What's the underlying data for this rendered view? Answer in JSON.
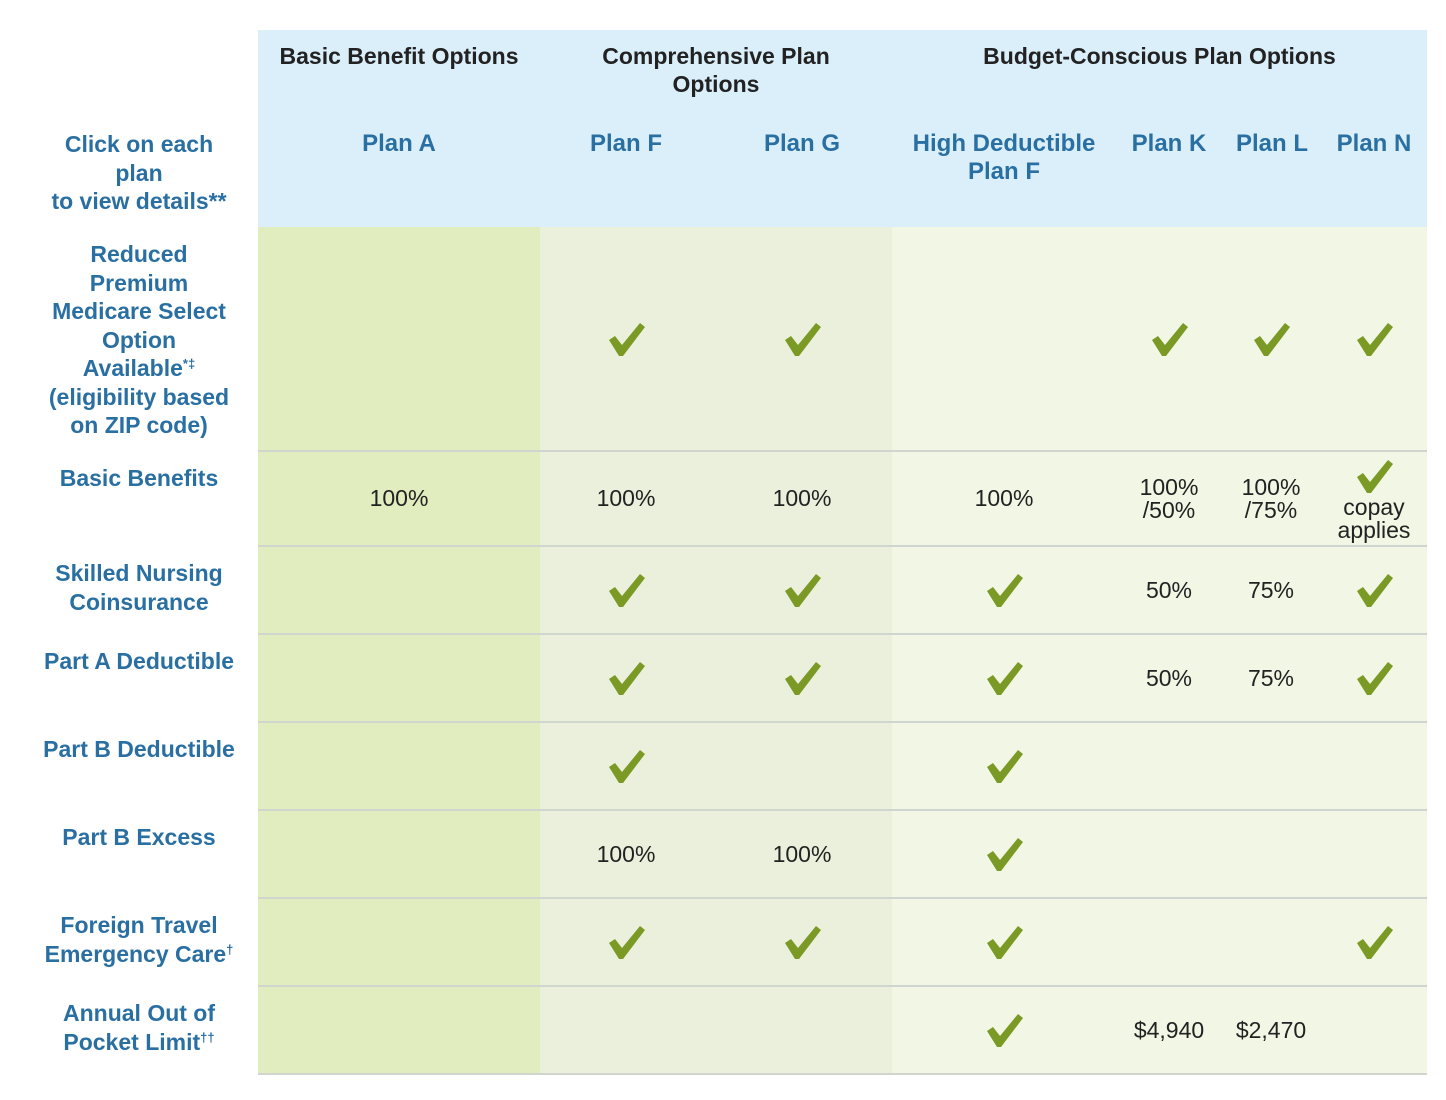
{
  "groups": [
    {
      "key": "basic",
      "label": "Basic Benefit Options"
    },
    {
      "key": "comprehensive",
      "label": "Comprehensive Plan Options"
    },
    {
      "key": "budget",
      "label": "Budget-Conscious Plan Options"
    }
  ],
  "instruction": {
    "line1": "Click on each plan",
    "line2": "to view details**"
  },
  "plans": [
    {
      "key": "A",
      "label": "Plan A"
    },
    {
      "key": "F",
      "label": "Plan F"
    },
    {
      "key": "G",
      "label": "Plan G"
    },
    {
      "key": "HDF",
      "label": "High Deductible Plan F"
    },
    {
      "key": "K",
      "label": "Plan K"
    },
    {
      "key": "L",
      "label": "Plan L"
    },
    {
      "key": "N",
      "label": "Plan N"
    }
  ],
  "rows": [
    {
      "key": "select",
      "label_lines": [
        "Reduced",
        "Premium",
        "Medicare Select",
        "Option",
        "Available*‡",
        "(eligibility based",
        "on ZIP code)"
      ],
      "cells": [
        "",
        "check",
        "check",
        "",
        "check",
        "check",
        "check"
      ]
    },
    {
      "key": "basic",
      "label_lines": [
        "Basic Benefits"
      ],
      "cells": [
        "100%",
        "100%",
        "100%",
        "100%",
        "100%\n/50%",
        "100%\n/75%",
        "check|copay|applies"
      ]
    },
    {
      "key": "snf",
      "label_lines": [
        "Skilled Nursing",
        "Coinsurance"
      ],
      "cells": [
        "",
        "check",
        "check",
        "check",
        "50%",
        "75%",
        "check"
      ]
    },
    {
      "key": "parta",
      "label_lines": [
        "Part A Deductible"
      ],
      "cells": [
        "",
        "check",
        "check",
        "check",
        "50%",
        "75%",
        "check"
      ]
    },
    {
      "key": "partb",
      "label_lines": [
        "Part B Deductible"
      ],
      "cells": [
        "",
        "check",
        "",
        "check",
        "",
        "",
        ""
      ]
    },
    {
      "key": "excess",
      "label_lines": [
        "Part B Excess"
      ],
      "cells": [
        "",
        "100%",
        "100%",
        "check",
        "",
        "",
        ""
      ]
    },
    {
      "key": "travel",
      "label_lines": [
        "Foreign Travel",
        "Emergency Care†"
      ],
      "cells": [
        "",
        "check",
        "check",
        "check",
        "",
        "",
        "check"
      ]
    },
    {
      "key": "oop",
      "label_lines": [
        "Annual Out of",
        "Pocket Limit††"
      ],
      "cells": [
        "",
        "",
        "",
        "check",
        "$4,940",
        "$2,470",
        ""
      ]
    }
  ],
  "colors": {
    "header_bg": "#dbeffb",
    "link": "#2a6fa2",
    "check": "#7a9a25",
    "basic_bg": "#e1ecbf",
    "comprehensive_bg": "#eaf0db",
    "budget_bg": "#f1f6e5"
  },
  "icons": {
    "included": "check-icon"
  }
}
